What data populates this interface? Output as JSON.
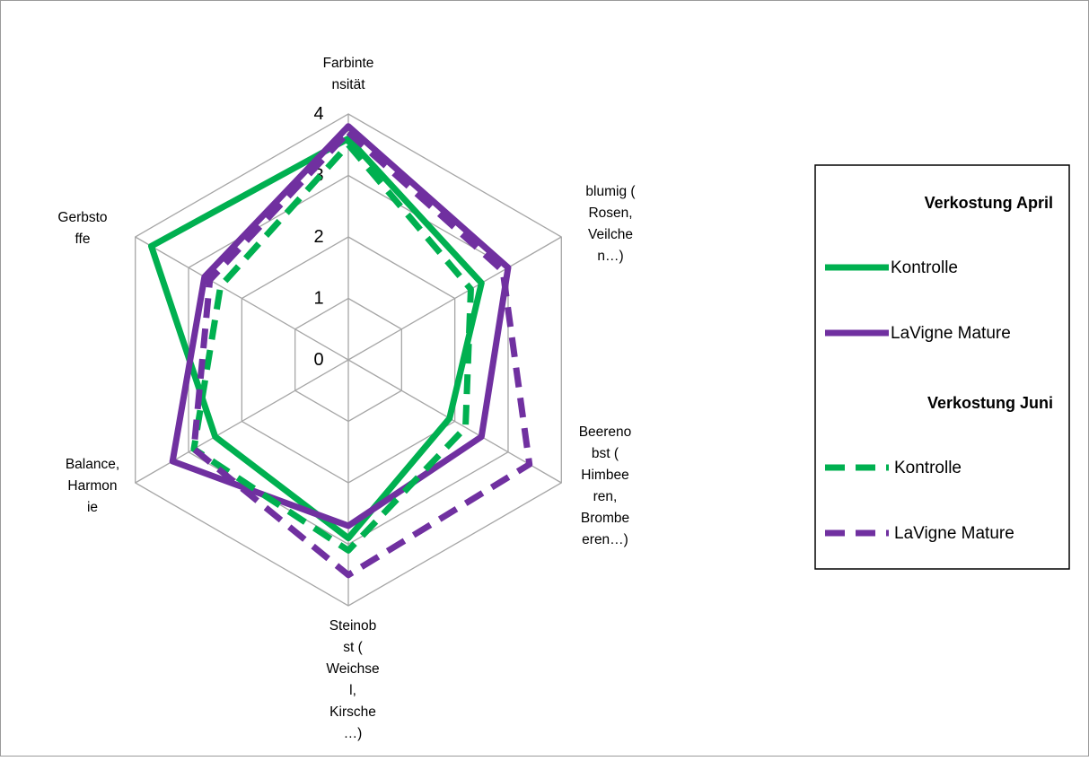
{
  "chart_data": {
    "type": "radar",
    "axes": [
      [
        "Farbinte",
        "nsität"
      ],
      [
        "blumig (",
        "Rosen,",
        "Veilche",
        "n…)"
      ],
      [
        "Beereno",
        "bst (",
        "Himbee",
        "ren,",
        "Brombe",
        "eren…)"
      ],
      [
        "Steinob",
        "st (",
        "Weichse",
        "l,",
        "Kirsche",
        "…)"
      ],
      [
        "Balance,",
        "Harmon",
        "ie"
      ],
      [
        "Gerbsto",
        "ffe"
      ]
    ],
    "rmin": 0,
    "rmax": 4,
    "ticks": [
      "0",
      "1",
      "2",
      "3",
      "4"
    ],
    "grid": true,
    "legend_position": "right",
    "groups": [
      {
        "title": "Verkostung April",
        "series": [
          {
            "name": "Kontrolle",
            "style": "solid",
            "color": "#00b050",
            "values": [
              3.6,
              2.5,
              1.9,
              2.9,
              2.5,
              3.7
            ]
          },
          {
            "name": "LaVigne Mature",
            "style": "solid",
            "color": "#7030a0",
            "values": [
              3.8,
              3.0,
              2.5,
              2.7,
              3.3,
              2.7
            ]
          }
        ]
      },
      {
        "title": "Verkostung Juni",
        "series": [
          {
            "name": "Kontrolle",
            "style": "dashed",
            "color": "#00b050",
            "values": [
              3.5,
              2.3,
              2.2,
              3.1,
              2.9,
              2.4
            ]
          },
          {
            "name": "LaVigne Mature",
            "style": "dashed",
            "color": "#7030a0",
            "values": [
              3.7,
              2.9,
              3.4,
              3.5,
              2.9,
              2.6
            ]
          }
        ]
      }
    ]
  }
}
